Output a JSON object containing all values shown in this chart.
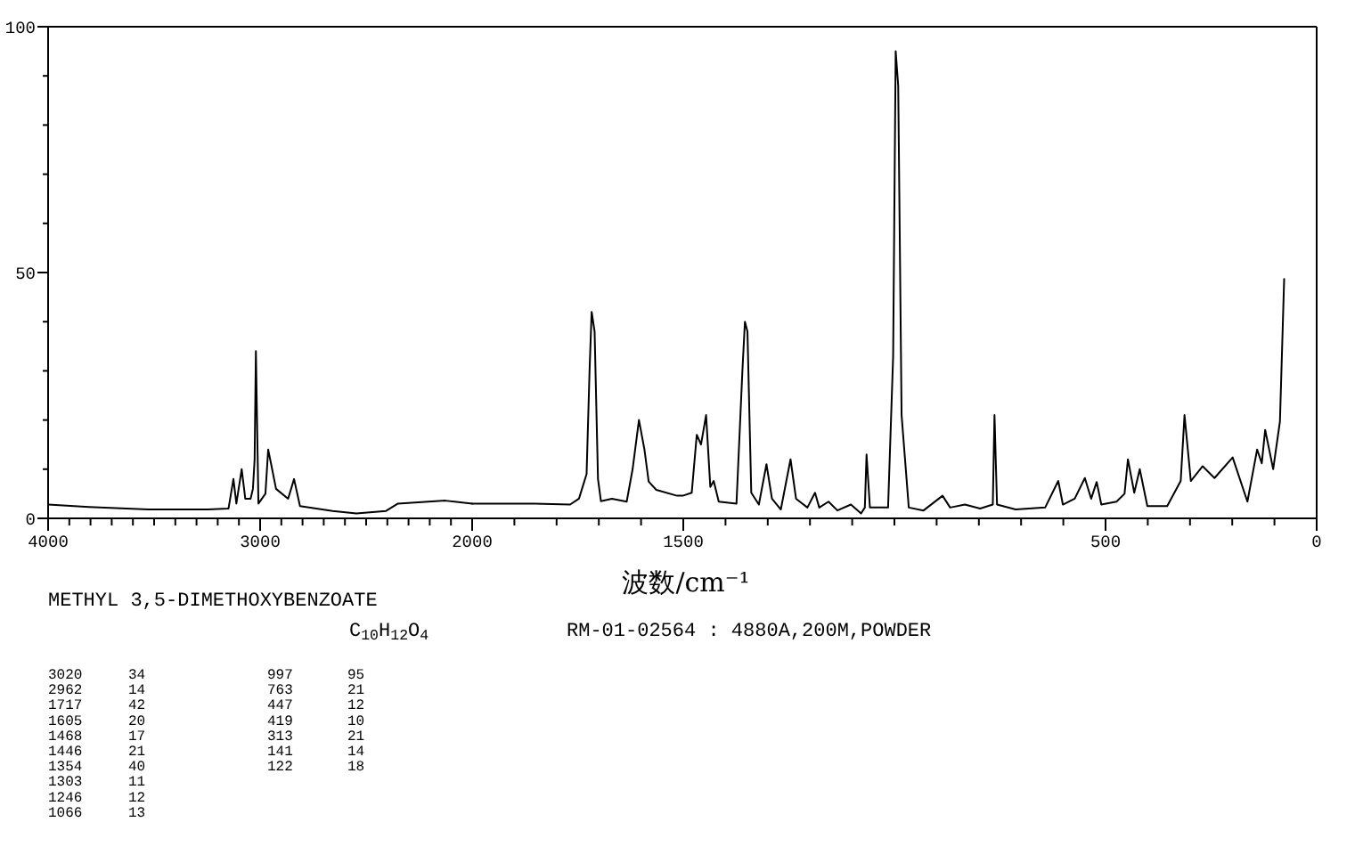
{
  "chart_data": [
    {
      "type": "line",
      "title": "METHYL 3,5-DIMETHOXYBENZOATE",
      "subtitle": "C$_{10}$H$_{12}$O$_{4}$",
      "xlabel": "波数/cm⁻¹",
      "color": "#000000",
      "annotations": [
        "RM-01-02564 : 4880A,200M,POWDER",
        "3020 34",
        "2962 14",
        "1717 42",
        "1605 20",
        "1468 17",
        "1446 21",
        "1354 40",
        "1303 11",
        "1246 12",
        "1066 13",
        "997 95",
        "763 21",
        "447 12",
        "419 10",
        "313 21",
        "141 14",
        "122 18"
      ],
      "xlim": [
        4000,
        2000
      ],
      "ylim": [
        0,
        100
      ],
      "xticks": [
        4000,
        {
          "value": 3900,
          "label": null
        },
        {
          "value": 3800,
          "label": null
        },
        {
          "value": 3700,
          "label": null
        },
        {
          "value": 3600,
          "label": null
        },
        {
          "value": 3500,
          "label": null
        },
        {
          "value": 3400,
          "label": null
        },
        {
          "value": 3300,
          "label": null
        },
        {
          "value": 3200,
          "label": null
        },
        {
          "value": 3100,
          "label": null
        },
        3000,
        {
          "value": 2900,
          "label": null
        },
        {
          "value": 2800,
          "label": null
        },
        {
          "value": 2700,
          "label": null
        },
        {
          "value": 2600,
          "label": null
        },
        {
          "value": 2500,
          "label": null
        },
        {
          "value": 2400,
          "label": null
        },
        {
          "value": 2300,
          "label": null
        },
        {
          "value": 2200,
          "label": null
        },
        {
          "value": 2100,
          "label": null
        },
        2000
      ],
      "yticks": [
        0,
        {
          "value": 10,
          "label": null
        },
        {
          "value": 20,
          "label": null
        },
        {
          "value": 30,
          "label": null
        },
        {
          "value": 40,
          "label": null
        },
        50,
        {
          "value": 60,
          "label": null
        },
        {
          "value": 70,
          "label": null
        },
        {
          "value": 80,
          "label": null
        },
        {
          "value": 90,
          "label": null
        },
        100
      ],
      "x": [
        4000,
        3807,
        3527,
        3246,
        3149,
        3126,
        3112,
        3087,
        3070,
        3045,
        3034,
        3026,
        3020,
        3008,
        2975,
        2962,
        2948,
        2925,
        2868,
        2840,
        2812,
        2658,
        2546,
        2406,
        2350,
        2126,
        2000
      ],
      "values": [
        2.8,
        2.3,
        1.8,
        1.8,
        2,
        8,
        3,
        10,
        4,
        4,
        6,
        12,
        34,
        3,
        5,
        14,
        11,
        6,
        4,
        8,
        2.5,
        1.5,
        1,
        1.5,
        3,
        3.6,
        3
      ]
    },
    {
      "type": "line",
      "color": "#000000",
      "tick_labels": "x",
      "xlim": [
        2000,
        0
      ],
      "ylim": [
        0,
        100
      ],
      "xticks": [
        {
          "value": 1900,
          "label": null
        },
        {
          "value": 1800,
          "label": null
        },
        {
          "value": 1700,
          "label": null
        },
        {
          "value": 1600,
          "label": null
        },
        1500,
        {
          "value": 1400,
          "label": null
        },
        {
          "value": 1300,
          "label": null
        },
        {
          "value": 1200,
          "label": null
        },
        {
          "value": 1100,
          "label": null
        },
        {
          "value": 1000,
          "label": null
        },
        {
          "value": 900,
          "label": null
        },
        {
          "value": 800,
          "label": null
        },
        {
          "value": 700,
          "label": null
        },
        {
          "value": 600,
          "label": null
        },
        500,
        {
          "value": 400,
          "label": null
        },
        {
          "value": 300,
          "label": null
        },
        {
          "value": 200,
          "label": null
        },
        {
          "value": 100,
          "label": null
        },
        0
      ],
      "x": [
        2000,
        1852,
        1768,
        1747,
        1729,
        1722,
        1717,
        1710,
        1702,
        1695,
        1669,
        1634,
        1620,
        1605,
        1592,
        1582,
        1564,
        1515,
        1501,
        1480,
        1468,
        1458,
        1446,
        1436,
        1428,
        1416,
        1374,
        1360,
        1354,
        1348,
        1339,
        1321,
        1303,
        1290,
        1269,
        1246,
        1233,
        1206,
        1188,
        1178,
        1156,
        1135,
        1103,
        1079,
        1070,
        1066,
        1058,
        1015,
        1003,
        997,
        991,
        983,
        966,
        931,
        886,
        868,
        833,
        797,
        767,
        763,
        757,
        713,
        643,
        612,
        601,
        573,
        549,
        534,
        521,
        510,
        474,
        455,
        447,
        432,
        419,
        401,
        354,
        322,
        313,
        298,
        270,
        242,
        199,
        164,
        141,
        130,
        122,
        103,
        87,
        77
      ],
      "values": [
        3,
        3,
        2.8,
        4,
        9,
        30,
        42,
        38,
        8,
        3.5,
        4,
        3.4,
        10,
        20,
        14,
        7.5,
        5.8,
        4.6,
        4.6,
        5.2,
        17,
        15,
        21,
        6.4,
        7.6,
        3.4,
        3,
        30,
        40,
        38,
        5.2,
        2.8,
        11,
        4,
        1.8,
        12,
        4,
        2.2,
        5.2,
        2.2,
        3.4,
        1.6,
        2.8,
        1,
        2.2,
        13,
        2.2,
        2.2,
        33,
        95,
        88,
        21,
        2.2,
        1.6,
        4.6,
        2.2,
        2.8,
        2,
        2.8,
        21,
        2.8,
        1.8,
        2.2,
        7.6,
        2.8,
        4,
        8.2,
        4,
        7.4,
        2.8,
        3.4,
        5,
        12,
        5.2,
        10,
        2.5,
        2.5,
        7.6,
        21,
        7.6,
        10.6,
        8.2,
        12.4,
        3.4,
        14,
        11.2,
        18,
        10,
        19.7,
        48.7
      ]
    }
  ]
}
